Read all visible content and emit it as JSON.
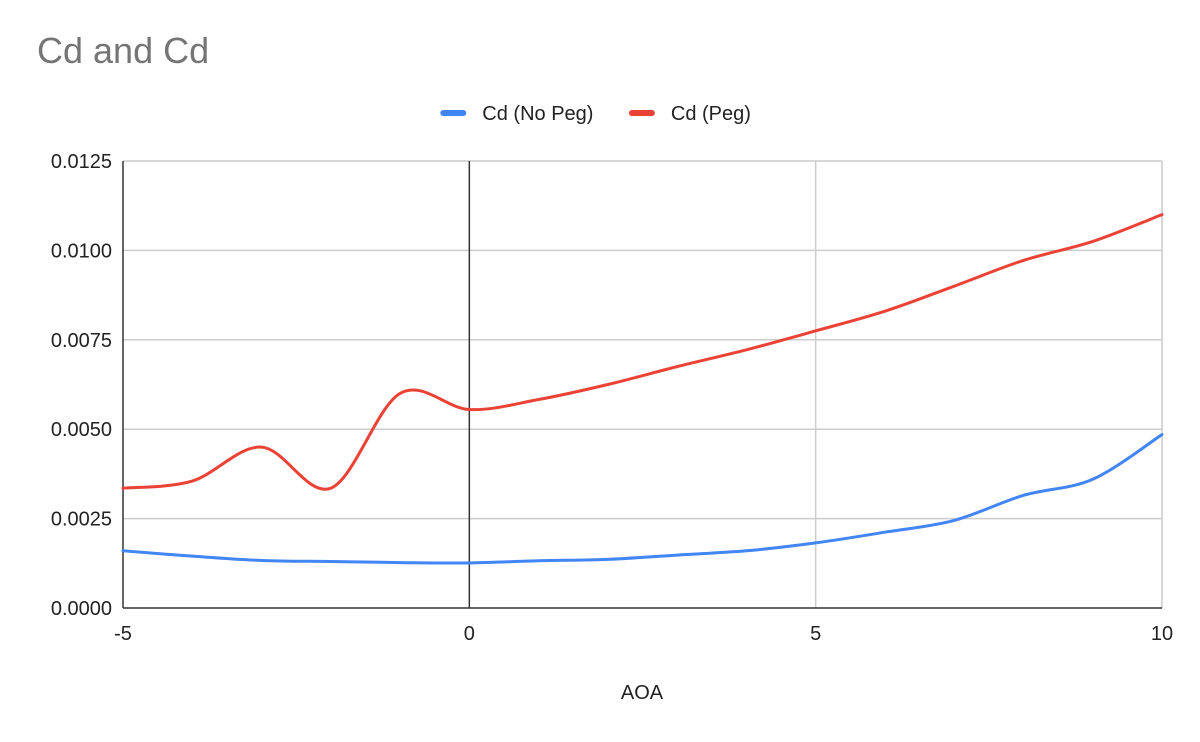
{
  "chart_data": {
    "type": "line",
    "title": "Cd and Cd",
    "xlabel": "AOA",
    "ylabel": "",
    "xlim": [
      -5,
      10
    ],
    "ylim": [
      0,
      0.0125
    ],
    "x_ticks": [
      "-5",
      "0",
      "5",
      "10"
    ],
    "y_ticks": [
      "0.0000",
      "0.0025",
      "0.0050",
      "0.0075",
      "0.0100",
      "0.0125"
    ],
    "grid": true,
    "legend": "top-center",
    "x": [
      -5,
      -4,
      -3,
      -2,
      -1,
      0,
      1,
      2,
      3,
      4,
      5,
      6,
      7,
      8,
      9,
      10
    ],
    "series": [
      {
        "name": "Cd (No Peg)",
        "color": "#4285f4",
        "values": [
          0.0016,
          0.00145,
          0.00133,
          0.0013,
          0.00127,
          0.00126,
          0.00132,
          0.00136,
          0.00148,
          0.0016,
          0.00182,
          0.00212,
          0.00245,
          0.00315,
          0.0036,
          0.00485
        ]
      },
      {
        "name": "Cd (Peg)",
        "color": "#ea4335",
        "values": [
          0.00335,
          0.00355,
          0.0045,
          0.00335,
          0.006,
          0.00555,
          0.00583,
          0.00625,
          0.00675,
          0.00722,
          0.00775,
          0.0083,
          0.009,
          0.00972,
          0.01025,
          0.011
        ]
      }
    ]
  }
}
